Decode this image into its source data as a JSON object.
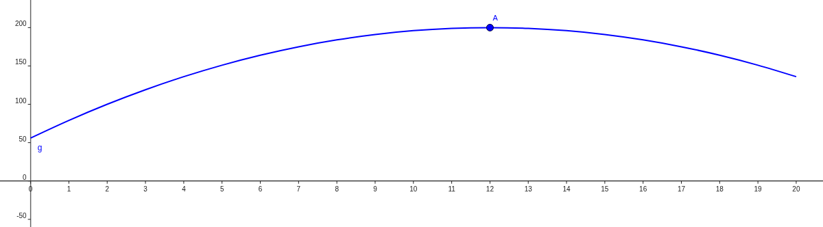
{
  "chart_data": {
    "type": "line",
    "x": [
      0,
      1,
      2,
      3,
      4,
      5,
      6,
      7,
      8,
      9,
      10,
      11,
      12,
      13,
      14,
      15,
      16,
      17,
      18,
      19,
      20
    ],
    "series": [
      {
        "name": "g",
        "color": "#0000ff",
        "values": [
          56,
          79,
          100,
          119,
          136,
          151,
          164,
          175,
          184,
          191,
          196,
          199,
          200,
          199,
          196,
          191,
          184,
          175,
          164,
          151,
          136
        ]
      },
      {
        "name": "A",
        "type": "scatter",
        "marker": "circle",
        "color": "#0000ff",
        "x": [
          12
        ],
        "values": [
          200
        ]
      }
    ],
    "xlim": [
      -0.8,
      20.7
    ],
    "ylim": [
      -60,
      236
    ],
    "xticks": [
      0,
      1,
      2,
      3,
      4,
      5,
      6,
      7,
      8,
      9,
      10,
      11,
      12,
      13,
      14,
      15,
      16,
      17,
      18,
      19,
      20
    ],
    "yticks": [
      -50,
      0,
      50,
      100,
      150,
      200
    ],
    "grid": false,
    "legend": false,
    "line_style": "solid"
  }
}
